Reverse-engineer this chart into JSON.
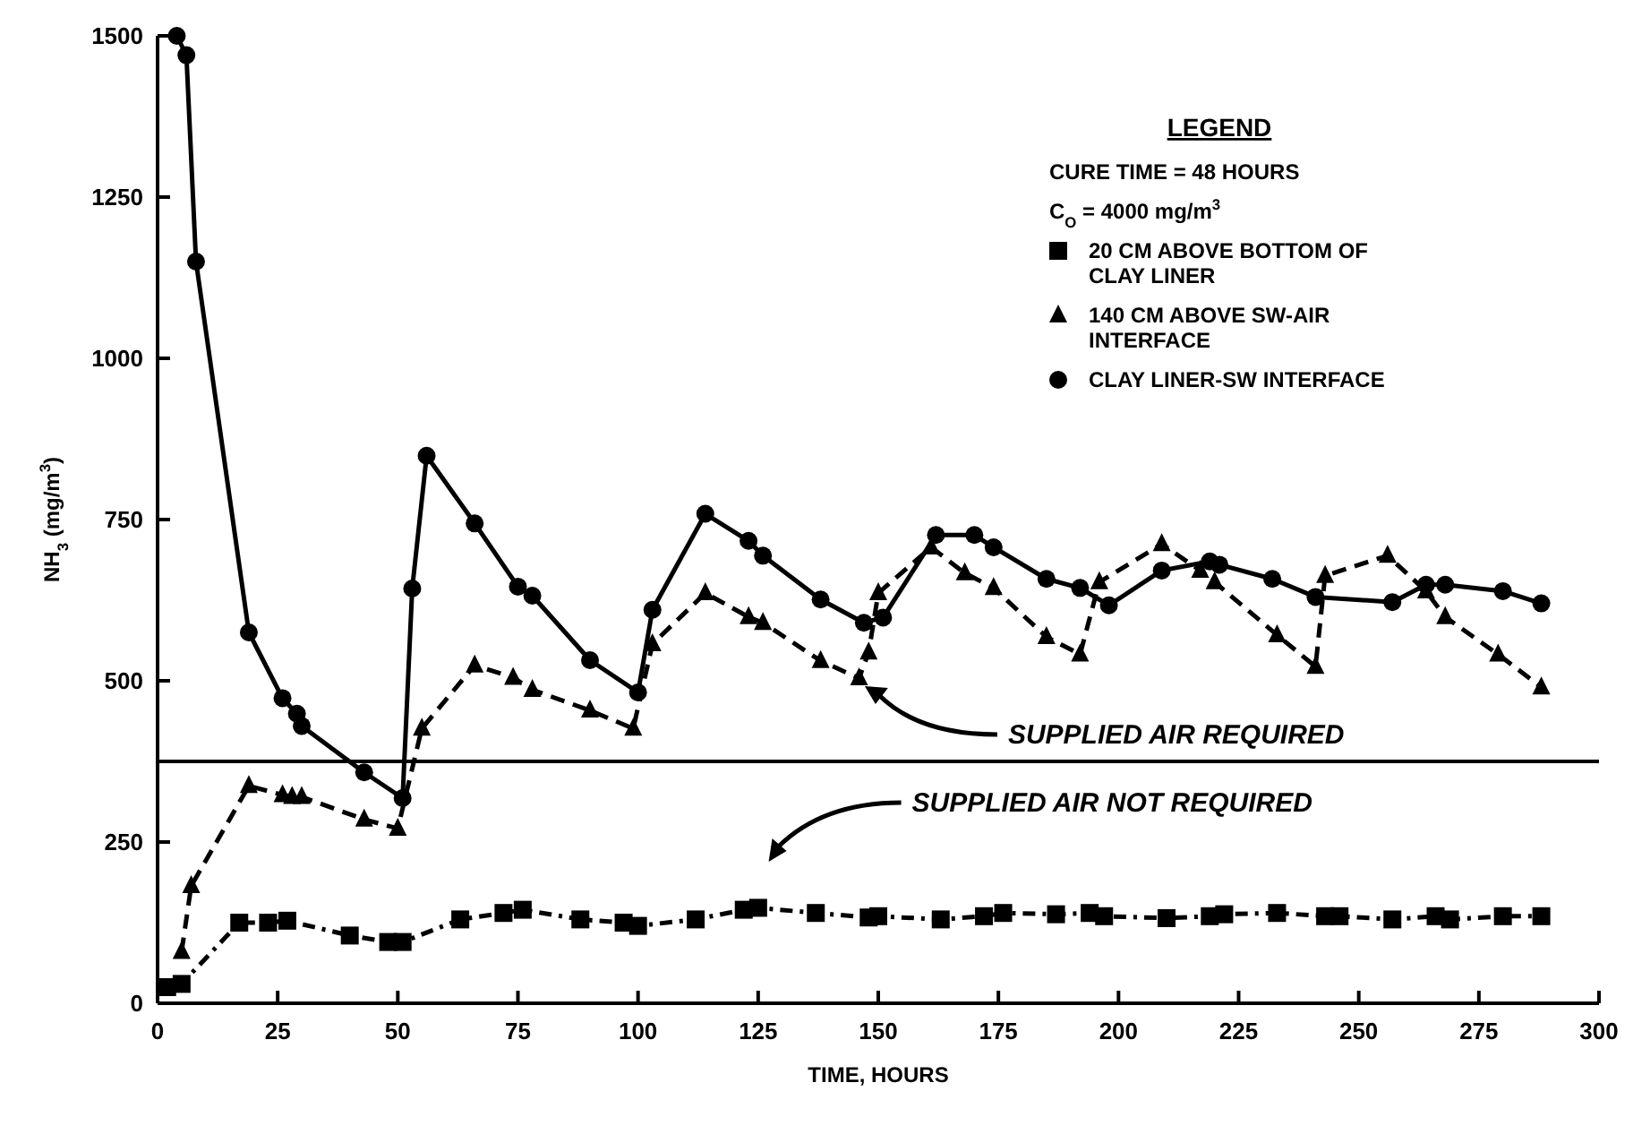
{
  "chart_data": {
    "type": "line",
    "xlabel": "TIME, HOURS",
    "ylabel": "NH$_{3}$ (mg/m$^{3}$)",
    "legend_title": "LEGEND",
    "legend": "top right",
    "grid": false,
    "xlim": [
      0,
      300
    ],
    "ylim": [
      0,
      1500
    ],
    "xticks": [
      0,
      25,
      50,
      75,
      100,
      125,
      150,
      175,
      200,
      225,
      250,
      275,
      300
    ],
    "yticks": [
      0,
      250,
      500,
      750,
      1000,
      1250,
      1500
    ],
    "series": [
      {
        "name": "20 CM ABOVE BOTTOM OF CLAY LINER",
        "color": "#000000",
        "marker": "square",
        "line_style": "dotted",
        "x": [
          2,
          5,
          17,
          23,
          27,
          40,
          48,
          51,
          63,
          72,
          76,
          88,
          97,
          100,
          112,
          122,
          125,
          137,
          148,
          150,
          163,
          172,
          176,
          187,
          194,
          197,
          210,
          219,
          222,
          233,
          243,
          246,
          257,
          266,
          269,
          280,
          288
        ],
        "values": [
          25,
          30,
          125,
          125,
          128,
          105,
          95,
          95,
          130,
          140,
          145,
          130,
          125,
          120,
          130,
          145,
          148,
          140,
          133,
          135,
          130,
          135,
          140,
          138,
          140,
          135,
          132,
          135,
          138,
          140,
          135,
          135,
          130,
          135,
          130,
          135,
          135
        ]
      },
      {
        "name": "140 CM ABOVE SW-AIR INTERFACE",
        "color": "#000000",
        "marker": "triangle",
        "line_style": "dashed",
        "x": [
          5,
          7,
          19,
          26,
          28,
          30,
          43,
          50,
          55,
          66,
          74,
          78,
          90,
          99,
          101,
          103,
          114,
          123,
          126,
          138,
          146,
          148,
          150,
          161,
          168,
          174,
          185,
          192,
          196,
          209,
          217,
          220,
          233,
          241,
          243,
          256,
          264,
          268,
          279,
          288
        ],
        "values": [
          80,
          182,
          337,
          323,
          320,
          320,
          285,
          271,
          426,
          524,
          505,
          486,
          454,
          426,
          null,
          557,
          636,
          599,
          590,
          531,
          504,
          544,
          636,
          707,
          667,
          644,
          568,
          541,
          653,
          712,
          671,
          653,
          571,
          522,
          663,
          694,
          639,
          599,
          541,
          490
        ]
      },
      {
        "name": "CLAY LINER-SW INTERFACE",
        "color": "#000000",
        "marker": "circle",
        "line_style": "solid",
        "x": [
          4,
          6,
          8,
          19,
          26,
          29,
          30,
          43,
          51,
          53,
          56,
          66,
          75,
          78,
          90,
          100,
          103,
          114,
          123,
          126,
          138,
          147,
          151,
          162,
          170,
          174,
          185,
          192,
          198,
          209,
          219,
          221,
          232,
          241,
          257,
          264,
          268,
          280,
          288
        ],
        "values": [
          1500,
          1470,
          1150,
          575,
          473,
          449,
          430,
          358,
          318,
          643,
          849,
          744,
          646,
          632,
          532,
          482,
          610,
          759,
          717,
          694,
          626,
          590,
          598,
          726,
          726,
          707,
          658,
          644,
          617,
          671,
          685,
          680,
          658,
          630,
          622,
          649,
          649,
          639,
          620
        ]
      }
    ],
    "ref_lines": [
      {
        "axis": "y",
        "value": 375,
        "color": "#000000",
        "line_style": "solid"
      }
    ],
    "annotations": [
      {
        "text": "SUPPLIED AIR REQUIRED",
        "x": 177,
        "y": 375
      },
      {
        "text": "SUPPLIED AIR NOT REQUIRED",
        "x": 157,
        "y": 375
      },
      "CURE TIME = 48 HOURS",
      "C$_{O}$ = 4000 mg/m$^{3}$"
    ]
  }
}
